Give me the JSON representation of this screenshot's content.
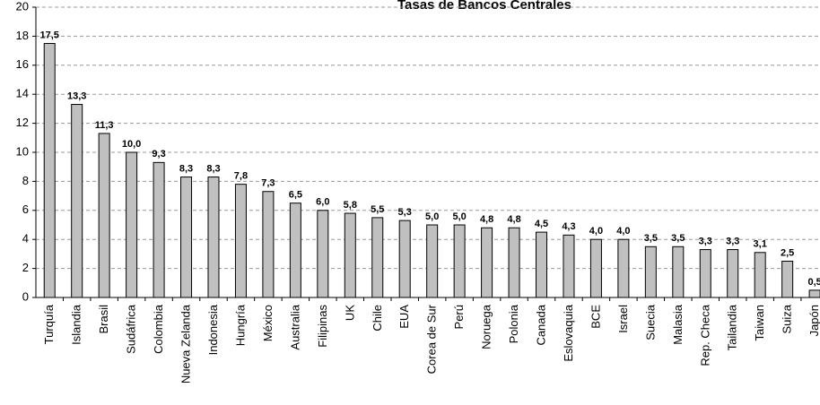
{
  "chart_data": {
    "type": "bar",
    "title": "Tasas de Bancos Centrales",
    "categories": [
      "Turquía",
      "Islandia",
      "Brasil",
      "Sudáfrica",
      "Colombia",
      "Nueva Zelanda",
      "Indonesia",
      "Hungría",
      "México",
      "Australia",
      "Filipinas",
      "UK",
      "Chile",
      "EUA",
      "Corea de Sur",
      "Perú",
      "Noruega",
      "Polonia",
      "Canada",
      "Eslovaquia",
      "BCE",
      "Israel",
      "Suecia",
      "Malasia",
      "Rep. Checa",
      "Tailandia",
      "Taiwan",
      "Suiza",
      "Japón"
    ],
    "values": [
      17.5,
      13.3,
      11.3,
      10.0,
      9.3,
      8.3,
      8.3,
      7.8,
      7.3,
      6.5,
      6.0,
      5.8,
      5.5,
      5.3,
      5.0,
      5.0,
      4.8,
      4.8,
      4.5,
      4.3,
      4.0,
      4.0,
      3.5,
      3.5,
      3.3,
      3.3,
      3.1,
      2.5,
      0.5
    ],
    "value_labels": [
      "17,5",
      "13,3",
      "11,3",
      "10,0",
      "9,3",
      "8,3",
      "8,3",
      "7,8",
      "7,3",
      "6,5",
      "6,0",
      "5,8",
      "5,5",
      "5,3",
      "5,0",
      "5,0",
      "4,8",
      "4,8",
      "4,5",
      "4,3",
      "4,0",
      "4,0",
      "3,5",
      "3,5",
      "3,3",
      "3,3",
      "3,1",
      "2,5",
      "0,5"
    ],
    "color": "#c0c0c0",
    "ylim": [
      0,
      20
    ],
    "yticks": [
      0,
      2,
      4,
      6,
      8,
      10,
      12,
      14,
      16,
      18,
      20
    ],
    "grid": true
  }
}
